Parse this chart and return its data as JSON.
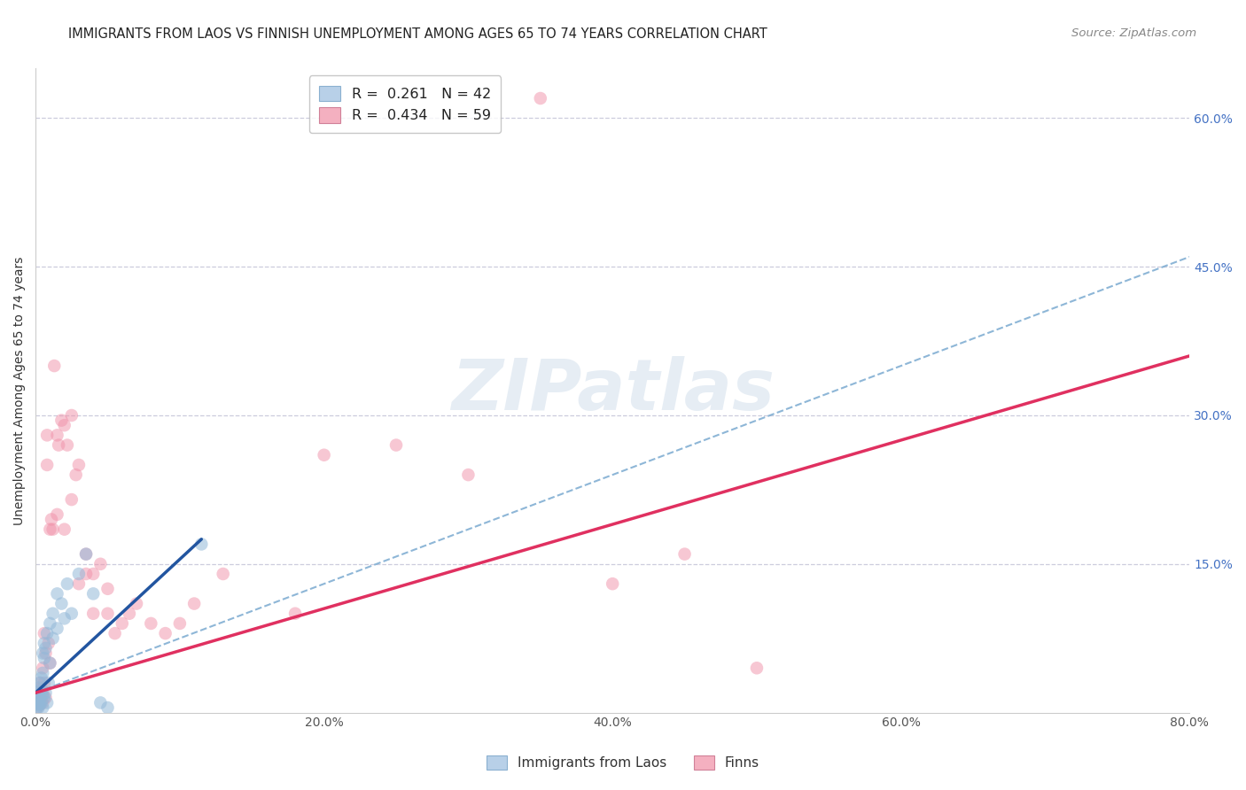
{
  "title": "IMMIGRANTS FROM LAOS VS FINNISH UNEMPLOYMENT AMONG AGES 65 TO 74 YEARS CORRELATION CHART",
  "source": "Source: ZipAtlas.com",
  "ylabel": "Unemployment Among Ages 65 to 74 years",
  "xlim": [
    0,
    0.8
  ],
  "ylim": [
    0,
    0.65
  ],
  "xtick_vals": [
    0.0,
    0.2,
    0.4,
    0.6,
    0.8
  ],
  "xtick_labels": [
    "0.0%",
    "20.0%",
    "40.0%",
    "60.0%",
    "80.0%"
  ],
  "ytick_positions": [
    0.15,
    0.3,
    0.45,
    0.6
  ],
  "ytick_labels": [
    "15.0%",
    "30.0%",
    "45.0%",
    "60.0%"
  ],
  "blue_color": "#92b8d8",
  "pink_color": "#f090a8",
  "blue_line_color": "#2255a0",
  "pink_line_color": "#e03060",
  "dash_line_color": "#7aaad0",
  "watermark_text": "ZIPatlas",
  "background_color": "#ffffff",
  "grid_color": "#ccccdd",
  "blue_scatter": [
    [
      0.001,
      0.005
    ],
    [
      0.001,
      0.008
    ],
    [
      0.001,
      0.012
    ],
    [
      0.002,
      0.005
    ],
    [
      0.002,
      0.01
    ],
    [
      0.002,
      0.018
    ],
    [
      0.002,
      0.025
    ],
    [
      0.003,
      0.008
    ],
    [
      0.003,
      0.015
    ],
    [
      0.003,
      0.022
    ],
    [
      0.003,
      0.03
    ],
    [
      0.004,
      0.01
    ],
    [
      0.004,
      0.02
    ],
    [
      0.004,
      0.035
    ],
    [
      0.005,
      0.005
    ],
    [
      0.005,
      0.018
    ],
    [
      0.005,
      0.04
    ],
    [
      0.005,
      0.06
    ],
    [
      0.006,
      0.015
    ],
    [
      0.006,
      0.055
    ],
    [
      0.006,
      0.07
    ],
    [
      0.007,
      0.02
    ],
    [
      0.007,
      0.065
    ],
    [
      0.008,
      0.01
    ],
    [
      0.008,
      0.08
    ],
    [
      0.009,
      0.03
    ],
    [
      0.01,
      0.05
    ],
    [
      0.01,
      0.09
    ],
    [
      0.012,
      0.075
    ],
    [
      0.012,
      0.1
    ],
    [
      0.015,
      0.085
    ],
    [
      0.015,
      0.12
    ],
    [
      0.018,
      0.11
    ],
    [
      0.02,
      0.095
    ],
    [
      0.022,
      0.13
    ],
    [
      0.025,
      0.1
    ],
    [
      0.03,
      0.14
    ],
    [
      0.035,
      0.16
    ],
    [
      0.04,
      0.12
    ],
    [
      0.045,
      0.01
    ],
    [
      0.05,
      0.005
    ],
    [
      0.115,
      0.17
    ]
  ],
  "pink_scatter": [
    [
      0.001,
      0.005
    ],
    [
      0.002,
      0.01
    ],
    [
      0.002,
      0.02
    ],
    [
      0.003,
      0.008
    ],
    [
      0.003,
      0.015
    ],
    [
      0.003,
      0.03
    ],
    [
      0.004,
      0.012
    ],
    [
      0.004,
      0.025
    ],
    [
      0.005,
      0.01
    ],
    [
      0.005,
      0.02
    ],
    [
      0.005,
      0.045
    ],
    [
      0.006,
      0.03
    ],
    [
      0.006,
      0.08
    ],
    [
      0.007,
      0.015
    ],
    [
      0.007,
      0.06
    ],
    [
      0.008,
      0.25
    ],
    [
      0.008,
      0.28
    ],
    [
      0.009,
      0.07
    ],
    [
      0.01,
      0.05
    ],
    [
      0.01,
      0.185
    ],
    [
      0.011,
      0.195
    ],
    [
      0.012,
      0.185
    ],
    [
      0.013,
      0.35
    ],
    [
      0.015,
      0.2
    ],
    [
      0.015,
      0.28
    ],
    [
      0.016,
      0.27
    ],
    [
      0.018,
      0.295
    ],
    [
      0.02,
      0.185
    ],
    [
      0.02,
      0.29
    ],
    [
      0.022,
      0.27
    ],
    [
      0.025,
      0.215
    ],
    [
      0.025,
      0.3
    ],
    [
      0.028,
      0.24
    ],
    [
      0.03,
      0.13
    ],
    [
      0.03,
      0.25
    ],
    [
      0.035,
      0.14
    ],
    [
      0.035,
      0.16
    ],
    [
      0.04,
      0.1
    ],
    [
      0.04,
      0.14
    ],
    [
      0.045,
      0.15
    ],
    [
      0.05,
      0.1
    ],
    [
      0.05,
      0.125
    ],
    [
      0.055,
      0.08
    ],
    [
      0.06,
      0.09
    ],
    [
      0.065,
      0.1
    ],
    [
      0.07,
      0.11
    ],
    [
      0.08,
      0.09
    ],
    [
      0.09,
      0.08
    ],
    [
      0.1,
      0.09
    ],
    [
      0.11,
      0.11
    ],
    [
      0.13,
      0.14
    ],
    [
      0.18,
      0.1
    ],
    [
      0.2,
      0.26
    ],
    [
      0.25,
      0.27
    ],
    [
      0.3,
      0.24
    ],
    [
      0.35,
      0.62
    ],
    [
      0.4,
      0.13
    ],
    [
      0.45,
      0.16
    ],
    [
      0.5,
      0.045
    ]
  ],
  "blue_line_x": [
    0.0,
    0.115
  ],
  "blue_line_y": [
    0.02,
    0.175
  ],
  "pink_line_x": [
    0.0,
    0.8
  ],
  "pink_line_y": [
    0.02,
    0.36
  ],
  "dash_line_x": [
    0.0,
    0.8
  ],
  "dash_line_y": [
    0.02,
    0.46
  ]
}
